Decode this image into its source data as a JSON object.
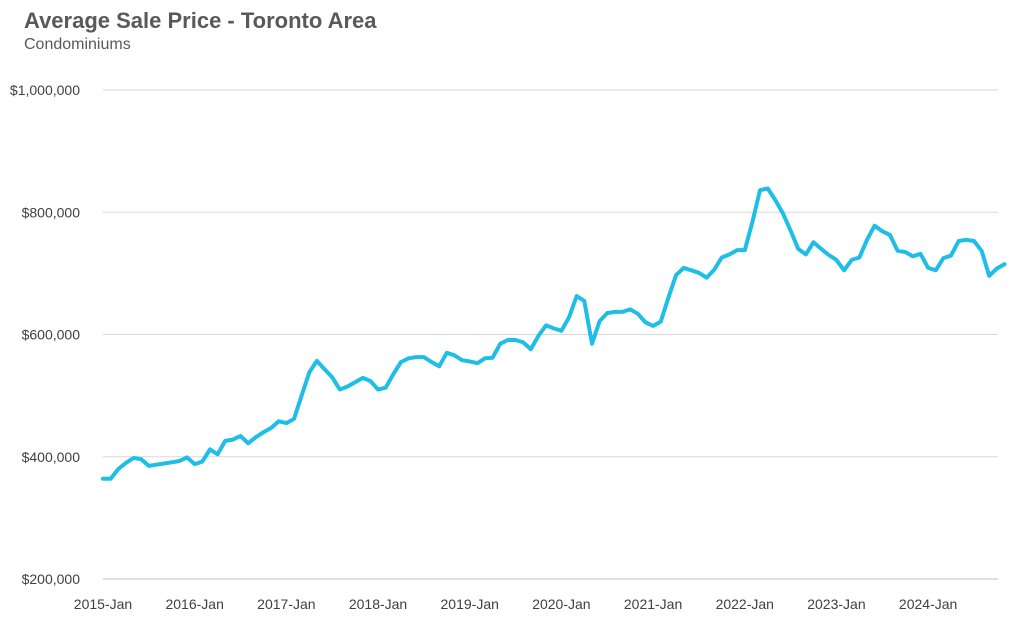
{
  "chart_data": {
    "type": "line",
    "title": "Average Sale Price - Toronto Area",
    "subtitle": "Condominiums",
    "xlabel": "",
    "ylabel": "",
    "ylim": [
      200000,
      1000000
    ],
    "yticks": [
      {
        "value": 200000,
        "label": "$200,000"
      },
      {
        "value": 400000,
        "label": "$400,000"
      },
      {
        "value": 600000,
        "label": "$600,000"
      },
      {
        "value": 800000,
        "label": "$800,000"
      },
      {
        "value": 1000000,
        "label": "$1,000,000"
      }
    ],
    "xticks": [
      "2015-Jan",
      "2016-Jan",
      "2017-Jan",
      "2018-Jan",
      "2019-Jan",
      "2020-Jan",
      "2021-Jan",
      "2022-Jan",
      "2023-Jan",
      "2024-Jan"
    ],
    "x_start": "2015-Jan",
    "x_end": "2024-Oct",
    "grid": true,
    "line_color": "#1EBEE6",
    "series": [
      {
        "values": [
          364000,
          364000,
          380000,
          390000,
          398000,
          396000,
          385000,
          387000,
          389000,
          391000,
          393000,
          399000,
          388000,
          392000,
          412000,
          404000,
          426000,
          428000,
          434000,
          422000,
          432000,
          440000,
          447000,
          458000,
          455000,
          462000,
          500000,
          538000,
          557000,
          543000,
          530000,
          510000,
          515000,
          522000,
          529000,
          524000,
          510000,
          513000,
          535000,
          555000,
          561000,
          563000,
          563000,
          555000,
          548000,
          570000,
          566000,
          558000,
          556000,
          553000,
          561000,
          562000,
          585000,
          591000,
          591000,
          587000,
          576000,
          598000,
          615000,
          610000,
          606000,
          628000,
          663000,
          655000,
          585000,
          622000,
          635000,
          637000,
          637000,
          641000,
          634000,
          620000,
          614000,
          621000,
          660000,
          697000,
          709000,
          705000,
          701000,
          693000,
          706000,
          726000,
          731000,
          738000,
          738000,
          784000,
          836000,
          839000,
          820000,
          798000,
          770000,
          740000,
          731000,
          751000,
          740000,
          730000,
          722000,
          705000,
          722000,
          726000,
          755000,
          778000,
          769000,
          763000,
          737000,
          735000,
          728000,
          732000,
          709000,
          705000,
          725000,
          729000,
          753000,
          755000,
          753000,
          737000,
          696000,
          708000,
          715000
        ]
      }
    ]
  }
}
